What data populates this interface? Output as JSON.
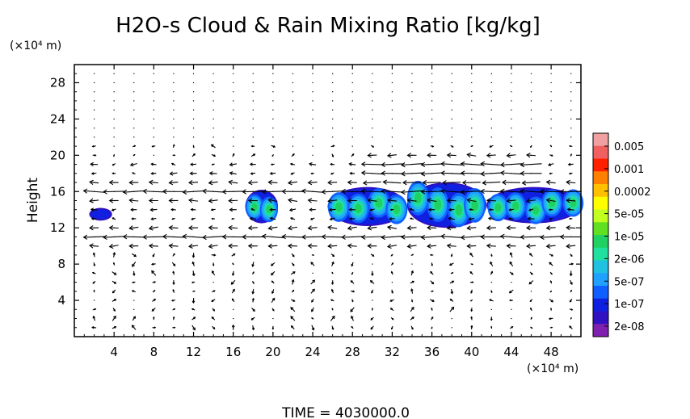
{
  "chart_data": {
    "type": "heatmap",
    "title": "H2O-s Cloud & Rain Mixing Ratio [kg/kg]",
    "xlabel": "",
    "ylabel": "Height",
    "x_unit_label": "(×10⁴ m)",
    "y_unit_label": "(×10⁴ m)",
    "xlim": [
      0,
      51
    ],
    "ylim": [
      0,
      30
    ],
    "x_ticks": [
      "4",
      "8",
      "12",
      "16",
      "20",
      "24",
      "28",
      "32",
      "36",
      "40",
      "44",
      "48"
    ],
    "y_ticks": [
      "4",
      "8",
      "12",
      "16",
      "20",
      "24",
      "28"
    ],
    "x_tick_values": [
      4,
      8,
      12,
      16,
      20,
      24,
      28,
      32,
      36,
      40,
      44,
      48
    ],
    "y_tick_values": [
      4,
      8,
      12,
      16,
      20,
      24,
      28
    ],
    "colorbar": {
      "labels": [
        "0.005",
        "0.001",
        "0.0002",
        "5e-05",
        "1e-05",
        "2e-06",
        "5e-07",
        "1e-07",
        "2e-08"
      ],
      "colors": [
        "#f0a0a0",
        "#f06060",
        "#ff2000",
        "#ff8000",
        "#ffc000",
        "#ffff00",
        "#c0ff20",
        "#60e020",
        "#20d060",
        "#20e0a0",
        "#20c0e0",
        "#20a0ff",
        "#1060ff",
        "#1020e0",
        "#3010c0",
        "#8020b0"
      ],
      "scale": "log"
    },
    "cloud_regions": [
      {
        "x_range": [
          1.5,
          3.8
        ],
        "z_range": [
          12.8,
          14.2
        ],
        "peak_class": "1e-07"
      },
      {
        "x_range": [
          17.2,
          20.5
        ],
        "z_range": [
          12.5,
          16.2
        ],
        "peak_class": "1e-05"
      },
      {
        "x_range": [
          25.5,
          33.5
        ],
        "z_range": [
          12.2,
          16.5
        ],
        "peak_class": "1e-05"
      },
      {
        "x_range": [
          33.5,
          41.5
        ],
        "z_range": [
          12.0,
          17.0
        ],
        "peak_class": "1e-05"
      },
      {
        "x_range": [
          41.5,
          51.0
        ],
        "z_range": [
          12.5,
          16.5
        ],
        "peak_class": "1e-05"
      }
    ],
    "wind_field": {
      "jets": [
        {
          "height": 11,
          "x_range": [
            0,
            51
          ],
          "direction": "west"
        },
        {
          "height": 16,
          "x_range": [
            0,
            51
          ],
          "direction": "west"
        },
        {
          "height": 18.5,
          "x_range": [
            30,
            46
          ],
          "direction": "west"
        }
      ]
    }
  },
  "footer": {
    "time_label": "TIME  =  4030000.0"
  }
}
